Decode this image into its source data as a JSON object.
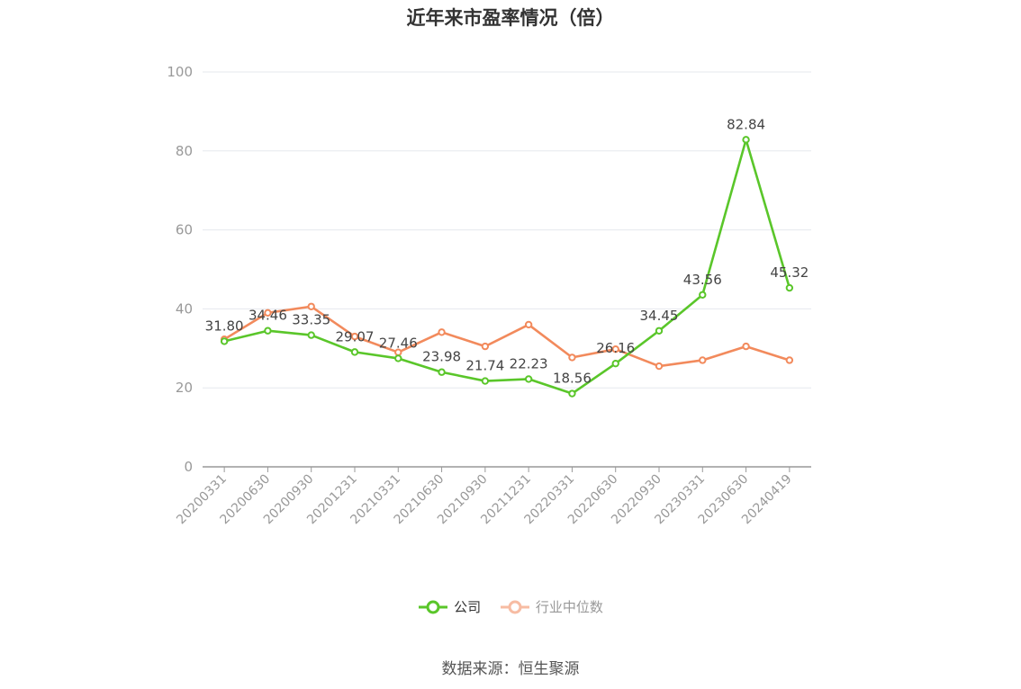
{
  "chart_data": {
    "type": "line",
    "title": "近年来市盈率情况（倍）",
    "categories": [
      "20200331",
      "20200630",
      "20200930",
      "20201231",
      "20210331",
      "20210630",
      "20210930",
      "20211231",
      "20220331",
      "20220630",
      "20220930",
      "20230331",
      "20230630",
      "20240419"
    ],
    "ylim": [
      0,
      100
    ],
    "yticks": [
      0,
      20,
      40,
      60,
      80,
      100
    ],
    "grid": true,
    "legend_position": "bottom",
    "series": [
      {
        "name": "公司",
        "color": "#5ac62a",
        "values": [
          31.8,
          34.46,
          33.35,
          29.07,
          27.46,
          23.98,
          21.74,
          22.23,
          18.56,
          26.16,
          34.45,
          43.56,
          82.84,
          45.32
        ],
        "labels": [
          "31.80",
          "34.46",
          "33.35",
          "29.07",
          "27.46",
          "23.98",
          "21.74",
          "22.23",
          "18.56",
          "26.16",
          "34.45",
          "43.56",
          "82.84",
          "45.32"
        ]
      },
      {
        "name": "行业中位数",
        "color": "#f28a5c",
        "values": [
          32.3,
          39.0,
          40.6,
          33.0,
          29.0,
          34.1,
          30.5,
          36.0,
          27.7,
          29.8,
          25.5,
          27.0,
          30.5,
          27.0
        ]
      }
    ]
  },
  "legend": {
    "company_label": "公司",
    "industry_label": "行业中位数"
  },
  "source_text": "数据来源：恒生聚源"
}
